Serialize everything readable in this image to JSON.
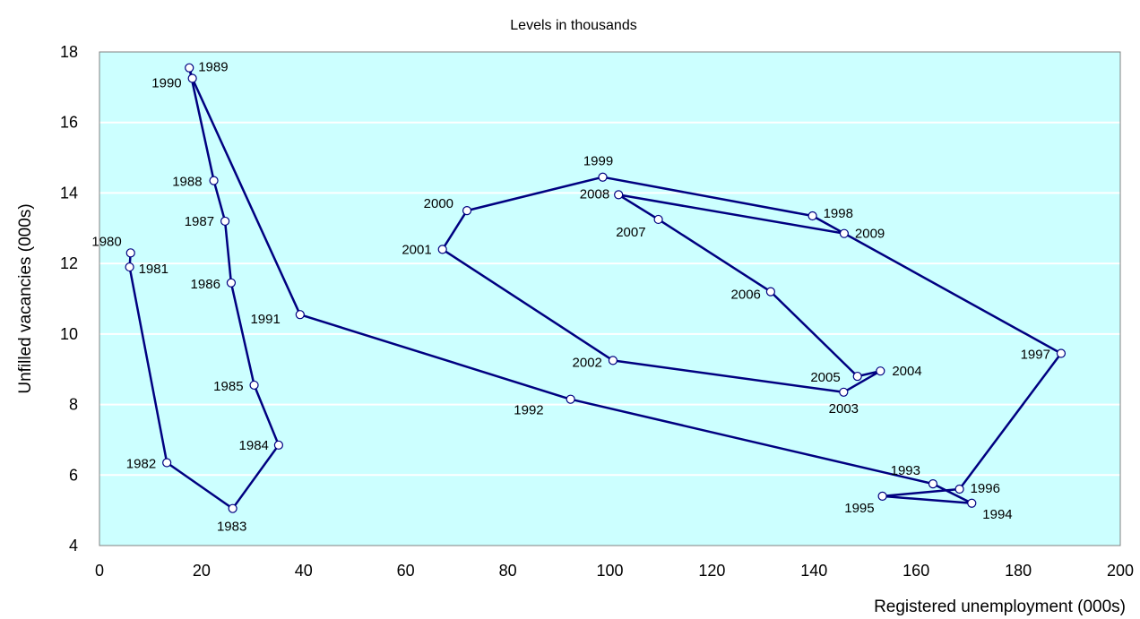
{
  "chart_data": {
    "type": "line",
    "title": "Levels in thousands",
    "xlabel": "Registered unemployment (000s)",
    "ylabel": "Unfilled vacancies (000s)",
    "xlim": [
      0,
      200
    ],
    "ylim": [
      4,
      18
    ],
    "x_ticks": [
      0,
      20,
      40,
      60,
      80,
      100,
      120,
      140,
      160,
      180,
      200
    ],
    "y_ticks": [
      4,
      6,
      8,
      10,
      12,
      14,
      16,
      18
    ],
    "grid": "horizontal",
    "legend": "none",
    "colors": {
      "plot_background": "#ccffff",
      "gridline": "#ffffff",
      "line": "#000080",
      "marker_fill": "#ffffff"
    },
    "series": [
      {
        "points": [
          {
            "label": "1980",
            "x": 6.1,
            "y": 12.3
          },
          {
            "label": "1981",
            "x": 5.9,
            "y": 11.9
          },
          {
            "label": "1982",
            "x": 13.2,
            "y": 6.35
          },
          {
            "label": "1983",
            "x": 26.1,
            "y": 5.05
          },
          {
            "label": "1984",
            "x": 35.1,
            "y": 6.85
          },
          {
            "label": "1985",
            "x": 30.3,
            "y": 8.55
          },
          {
            "label": "1986",
            "x": 25.8,
            "y": 11.45
          },
          {
            "label": "1987",
            "x": 24.6,
            "y": 13.2
          },
          {
            "label": "1988",
            "x": 22.4,
            "y": 14.35
          },
          {
            "label": "1989",
            "x": 17.6,
            "y": 17.55
          },
          {
            "label": "1990",
            "x": 18.2,
            "y": 17.25
          },
          {
            "label": "1991",
            "x": 39.3,
            "y": 10.55
          },
          {
            "label": "1992",
            "x": 92.3,
            "y": 8.15
          },
          {
            "label": "1993",
            "x": 163.3,
            "y": 5.75
          },
          {
            "label": "1994",
            "x": 170.9,
            "y": 5.2
          },
          {
            "label": "1995",
            "x": 153.4,
            "y": 5.4
          },
          {
            "label": "1996",
            "x": 168.5,
            "y": 5.6
          },
          {
            "label": "1997",
            "x": 188.4,
            "y": 9.45
          },
          {
            "label": "1998",
            "x": 139.7,
            "y": 13.35
          },
          {
            "label": "1999",
            "x": 98.6,
            "y": 14.45
          },
          {
            "label": "2000",
            "x": 72.0,
            "y": 13.5
          },
          {
            "label": "2001",
            "x": 67.2,
            "y": 12.4
          },
          {
            "label": "2002",
            "x": 100.6,
            "y": 9.25
          },
          {
            "label": "2003",
            "x": 145.8,
            "y": 8.35
          },
          {
            "label": "2004",
            "x": 153.0,
            "y": 8.95
          },
          {
            "label": "2005",
            "x": 148.5,
            "y": 8.8
          },
          {
            "label": "2006",
            "x": 131.5,
            "y": 11.2
          },
          {
            "label": "2007",
            "x": 109.5,
            "y": 13.25
          },
          {
            "label": "2008",
            "x": 101.7,
            "y": 13.95
          },
          {
            "label": "2009",
            "x": 145.9,
            "y": 12.85
          }
        ]
      }
    ]
  }
}
